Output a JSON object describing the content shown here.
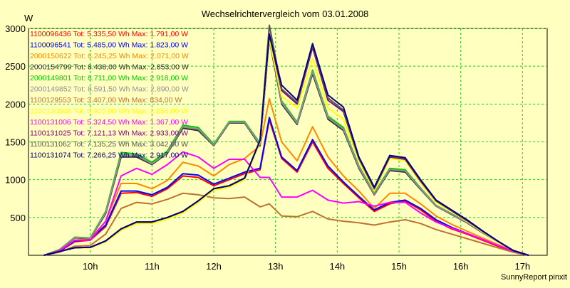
{
  "window": {
    "footer": "SunnyReport pinxit"
  },
  "chart_data": {
    "type": "line",
    "title": "Wechselrichtervergleich vom 03.01.2008",
    "xlabel": "",
    "ylabel": "W",
    "ylim": [
      0,
      3000
    ],
    "xlim": [
      9.0,
      17.4
    ],
    "yticks": [
      500,
      1000,
      1500,
      2000,
      2500,
      3000
    ],
    "xticks": [
      10,
      11,
      12,
      13,
      14,
      15,
      16,
      17
    ],
    "xtick_labels": [
      "10h",
      "11h",
      "12h",
      "13h",
      "14h",
      "15h",
      "16h",
      "17h"
    ],
    "grid": true,
    "legend_position": "top-left",
    "background": "#ffffc0",
    "grid_color": "#22cc22",
    "x": [
      9.25,
      9.5,
      9.75,
      10.0,
      10.25,
      10.5,
      10.75,
      11.0,
      11.25,
      11.5,
      11.75,
      12.0,
      12.25,
      12.5,
      12.75,
      12.9,
      13.1,
      13.35,
      13.6,
      13.85,
      14.1,
      14.35,
      14.6,
      14.85,
      15.1,
      15.35,
      15.6,
      15.85,
      16.1,
      16.35,
      16.6,
      16.85,
      17.1
    ],
    "series": [
      {
        "name": "1100096436",
        "label": "1100096436 Tot: 5.335,50 Wh Max: 1.791,00 W",
        "color": "#ff0000",
        "values": [
          0,
          50,
          180,
          200,
          380,
          820,
          830,
          780,
          880,
          1050,
          1030,
          920,
          1000,
          1080,
          1130,
          1791,
          1280,
          1100,
          1500,
          1150,
          950,
          760,
          580,
          680,
          720,
          600,
          450,
          350,
          280,
          200,
          120,
          50,
          0
        ]
      },
      {
        "name": "1100096541",
        "label": "1100096541 Tot: 5.485,00 Wh Max: 1.823,00 W",
        "color": "#0000ff",
        "values": [
          0,
          55,
          190,
          210,
          400,
          850,
          850,
          800,
          900,
          1080,
          1060,
          940,
          1020,
          1100,
          1150,
          1823,
          1300,
          1120,
          1530,
          1180,
          970,
          780,
          600,
          700,
          730,
          620,
          470,
          370,
          290,
          210,
          130,
          55,
          0
        ]
      },
      {
        "name": "2000150622",
        "label": "2000150622 Tot: 6.245,25 Wh Max: 2.071,00 W",
        "color": "#ff8800",
        "values": [
          0,
          60,
          200,
          220,
          450,
          950,
          950,
          880,
          990,
          1230,
          1180,
          1050,
          1200,
          1280,
          1450,
          2071,
          1500,
          1250,
          1700,
          1300,
          1050,
          850,
          620,
          820,
          820,
          680,
          520,
          410,
          320,
          230,
          140,
          60,
          0
        ]
      },
      {
        "name": "2000154799",
        "label": "2000154799 Tot: 8.438,00 Wh Max: 2.853,00 W",
        "color": "#303030",
        "values": [
          0,
          70,
          230,
          220,
          550,
          1300,
          1300,
          1200,
          1350,
          1680,
          1650,
          1450,
          1750,
          1750,
          1450,
          2853,
          2000,
          1730,
          2400,
          1800,
          1650,
          1150,
          800,
          1120,
          1100,
          870,
          650,
          540,
          430,
          300,
          180,
          60,
          0
        ]
      },
      {
        "name": "2000149801",
        "label": "2000149801 Tot: 8.711,00 Wh Max: 2.918,00 W",
        "color": "#00cc00",
        "values": [
          0,
          75,
          240,
          230,
          580,
          1360,
          1340,
          1230,
          1380,
          1720,
          1690,
          1470,
          1770,
          1770,
          1480,
          2918,
          2040,
          1760,
          2450,
          1840,
          1690,
          1180,
          820,
          1150,
          1130,
          890,
          660,
          550,
          440,
          310,
          185,
          65,
          0
        ]
      },
      {
        "name": "2000149852",
        "label": "2000149852 Tot: 8.591,50 Wh Max: 2.890,00 W",
        "color": "#909090",
        "values": [
          0,
          72,
          235,
          225,
          565,
          1330,
          1320,
          1210,
          1360,
          1700,
          1670,
          1460,
          1760,
          1760,
          1465,
          2890,
          2020,
          1745,
          2425,
          1820,
          1670,
          1165,
          810,
          1135,
          1115,
          880,
          655,
          545,
          435,
          305,
          182,
          62,
          0
        ]
      },
      {
        "name": "1100129553",
        "label": "1100129553 Tot: 3.407,00 Wh Max: 834,00 W",
        "color": "#c07030",
        "values": [
          0,
          40,
          120,
          130,
          280,
          620,
          700,
          680,
          740,
          820,
          800,
          760,
          750,
          770,
          640,
          680,
          520,
          510,
          580,
          480,
          450,
          430,
          400,
          440,
          470,
          420,
          340,
          280,
          220,
          160,
          100,
          40,
          0
        ]
      },
      {
        "name": "1100130868",
        "label": "1100130868 Tot: 6.905,00 Wh Max: 2.856,00 W",
        "color": "#ffff00",
        "values": [
          0,
          50,
          100,
          100,
          180,
          330,
          420,
          420,
          480,
          560,
          700,
          860,
          900,
          1000,
          1500,
          2856,
          2100,
          1950,
          2600,
          1950,
          1800,
          1250,
          850,
          1280,
          1250,
          960,
          700,
          580,
          450,
          310,
          180,
          60,
          0
        ]
      },
      {
        "name": "1100131006",
        "label": "1100131006 Tot: 5.324,50 Wh Max: 1.367,00 W",
        "color": "#ff00ff",
        "values": [
          0,
          60,
          200,
          200,
          450,
          1050,
          1150,
          1070,
          1200,
          1367,
          1300,
          1150,
          1270,
          1270,
          1030,
          1030,
          770,
          770,
          860,
          730,
          690,
          710,
          650,
          700,
          700,
          560,
          440,
          360,
          290,
          210,
          130,
          55,
          0
        ]
      },
      {
        "name": "1100131025",
        "label": "1100131025 Tot: 7.121,13 Wh Max: 2.933,00 W",
        "color": "#880088",
        "values": [
          0,
          50,
          100,
          105,
          190,
          350,
          440,
          440,
          500,
          580,
          720,
          880,
          920,
          1020,
          1520,
          2933,
          2180,
          2000,
          2750,
          2050,
          1900,
          1280,
          880,
          1300,
          1270,
          980,
          720,
          590,
          460,
          320,
          185,
          62,
          0
        ]
      },
      {
        "name": "1100131062",
        "label": "1100131062 Tot: 7.135,25 Wh Max: 3.042,00 W",
        "color": "#555555",
        "values": [
          0,
          50,
          100,
          105,
          190,
          350,
          440,
          440,
          500,
          580,
          720,
          880,
          920,
          1020,
          1520,
          3042,
          2200,
          2020,
          2780,
          2080,
          1920,
          1290,
          890,
          1310,
          1280,
          990,
          725,
          595,
          465,
          322,
          186,
          63,
          0
        ]
      },
      {
        "name": "1100131074",
        "label": "1100131074 Tot: 7.266,25 Wh Max: 2.917,00 W",
        "color": "#000080",
        "values": [
          0,
          50,
          100,
          105,
          190,
          350,
          440,
          440,
          500,
          580,
          720,
          880,
          920,
          1020,
          1520,
          2917,
          2250,
          2050,
          2800,
          2120,
          1960,
          1300,
          900,
          1320,
          1290,
          1000,
          730,
          600,
          470,
          325,
          188,
          64,
          0
        ]
      }
    ]
  }
}
